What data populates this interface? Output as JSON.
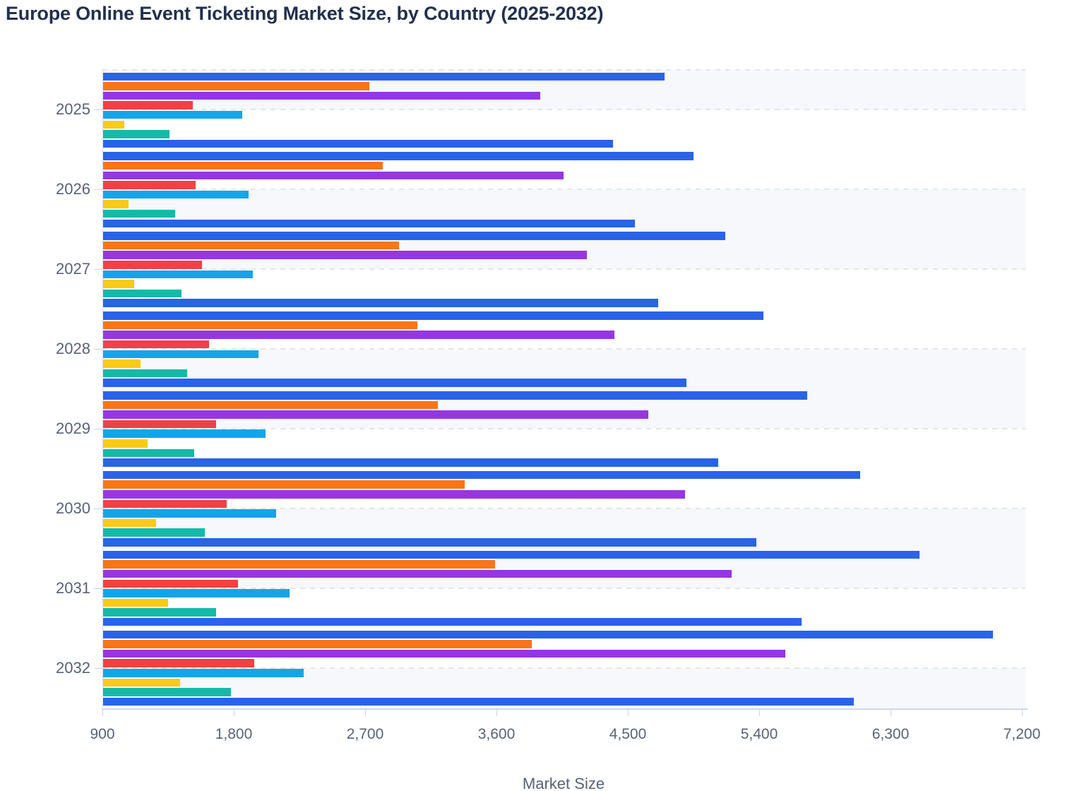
{
  "chart_data": {
    "type": "bar",
    "orientation": "horizontal",
    "title": "Europe Online Event Ticketing Market Size, by Country (2025-2032)",
    "xlabel": "Market Size",
    "categories": [
      "2025",
      "2026",
      "2027",
      "2028",
      "2029",
      "2030",
      "2031",
      "2032"
    ],
    "x_axis": {
      "min": 900,
      "max": 7200,
      "tick_values": [
        900,
        1800,
        2700,
        3600,
        4500,
        5400,
        6300,
        7200
      ],
      "tick_labels": [
        "900",
        "1,800",
        "2,700",
        "3,600",
        "4,500",
        "5,400",
        "6,300",
        "7,200"
      ]
    },
    "grid": "dashed-horizontal",
    "legend": "none",
    "series": [
      {
        "name": "series-1-blue",
        "color": "#2a63e8",
        "values": [
          4750,
          4950,
          5170,
          5430,
          5730,
          6090,
          6500,
          7000
        ]
      },
      {
        "name": "series-2-orange",
        "color": "#f97516",
        "values": [
          2730,
          2820,
          2930,
          3060,
          3200,
          3380,
          3590,
          3840
        ]
      },
      {
        "name": "series-3-purple",
        "color": "#9636e3",
        "values": [
          3900,
          4060,
          4220,
          4410,
          4640,
          4890,
          5210,
          5580
        ]
      },
      {
        "name": "series-4-red",
        "color": "#ee4245",
        "values": [
          1520,
          1540,
          1580,
          1630,
          1680,
          1750,
          1830,
          1940
        ]
      },
      {
        "name": "series-5-sky",
        "color": "#16a4e8",
        "values": [
          1860,
          1900,
          1930,
          1970,
          2020,
          2090,
          2180,
          2280
        ]
      },
      {
        "name": "series-6-yellow",
        "color": "#fbca15",
        "values": [
          1050,
          1080,
          1120,
          1160,
          1210,
          1270,
          1350,
          1430
        ]
      },
      {
        "name": "series-7-teal",
        "color": "#16b9a8",
        "values": [
          1360,
          1400,
          1440,
          1480,
          1530,
          1600,
          1680,
          1780
        ]
      },
      {
        "name": "series-8-blue",
        "color": "#2a63e8",
        "values": [
          4400,
          4550,
          4710,
          4900,
          5120,
          5380,
          5690,
          6050
        ]
      }
    ]
  },
  "theme": {
    "title_color": "#22304f",
    "label_color": "#57627a",
    "axis_color": "#ccd6eb",
    "tick_color": "#c9d3e8",
    "gridline_color": "#e3e5ea",
    "band_color": "#f6f8fb",
    "background_color": "#ffffff"
  }
}
